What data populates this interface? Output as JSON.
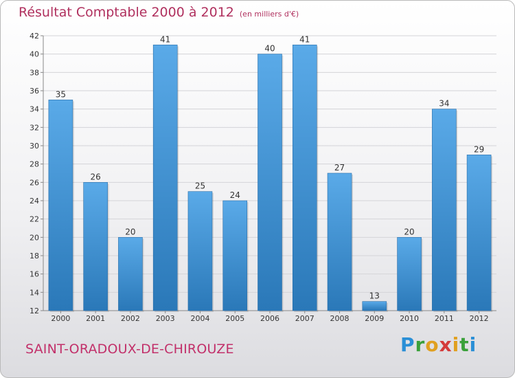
{
  "colors": {
    "bar_top": "#5aaae8",
    "bar_bottom": "#2a78b8",
    "title": "#b0305e",
    "commune": "#c2306a"
  },
  "header": {
    "title": "Résultat Comptable 2000 à 2012",
    "unit": "(en milliers d'€)"
  },
  "footer": {
    "commune": "SAINT-ORADOUX-DE-CHIROUZE",
    "logo": [
      "P",
      "r",
      "o",
      "x",
      "i",
      "t",
      "i"
    ]
  },
  "chart_data": {
    "type": "bar",
    "title": "Résultat Comptable 2000 à 2012",
    "subtitle": "(en milliers d'€)",
    "xlabel": "",
    "ylabel": "",
    "categories": [
      "2000",
      "2001",
      "2002",
      "2003",
      "2004",
      "2005",
      "2006",
      "2007",
      "2008",
      "2009",
      "2010",
      "2011",
      "2012"
    ],
    "values": [
      35,
      26,
      20,
      41,
      25,
      24,
      40,
      41,
      27,
      13,
      20,
      34,
      29
    ],
    "ylim": [
      12,
      42
    ],
    "yticks": [
      12,
      14,
      16,
      18,
      20,
      22,
      24,
      26,
      28,
      30,
      32,
      34,
      36,
      38,
      40,
      42
    ],
    "grid": true,
    "data_labels": true
  }
}
